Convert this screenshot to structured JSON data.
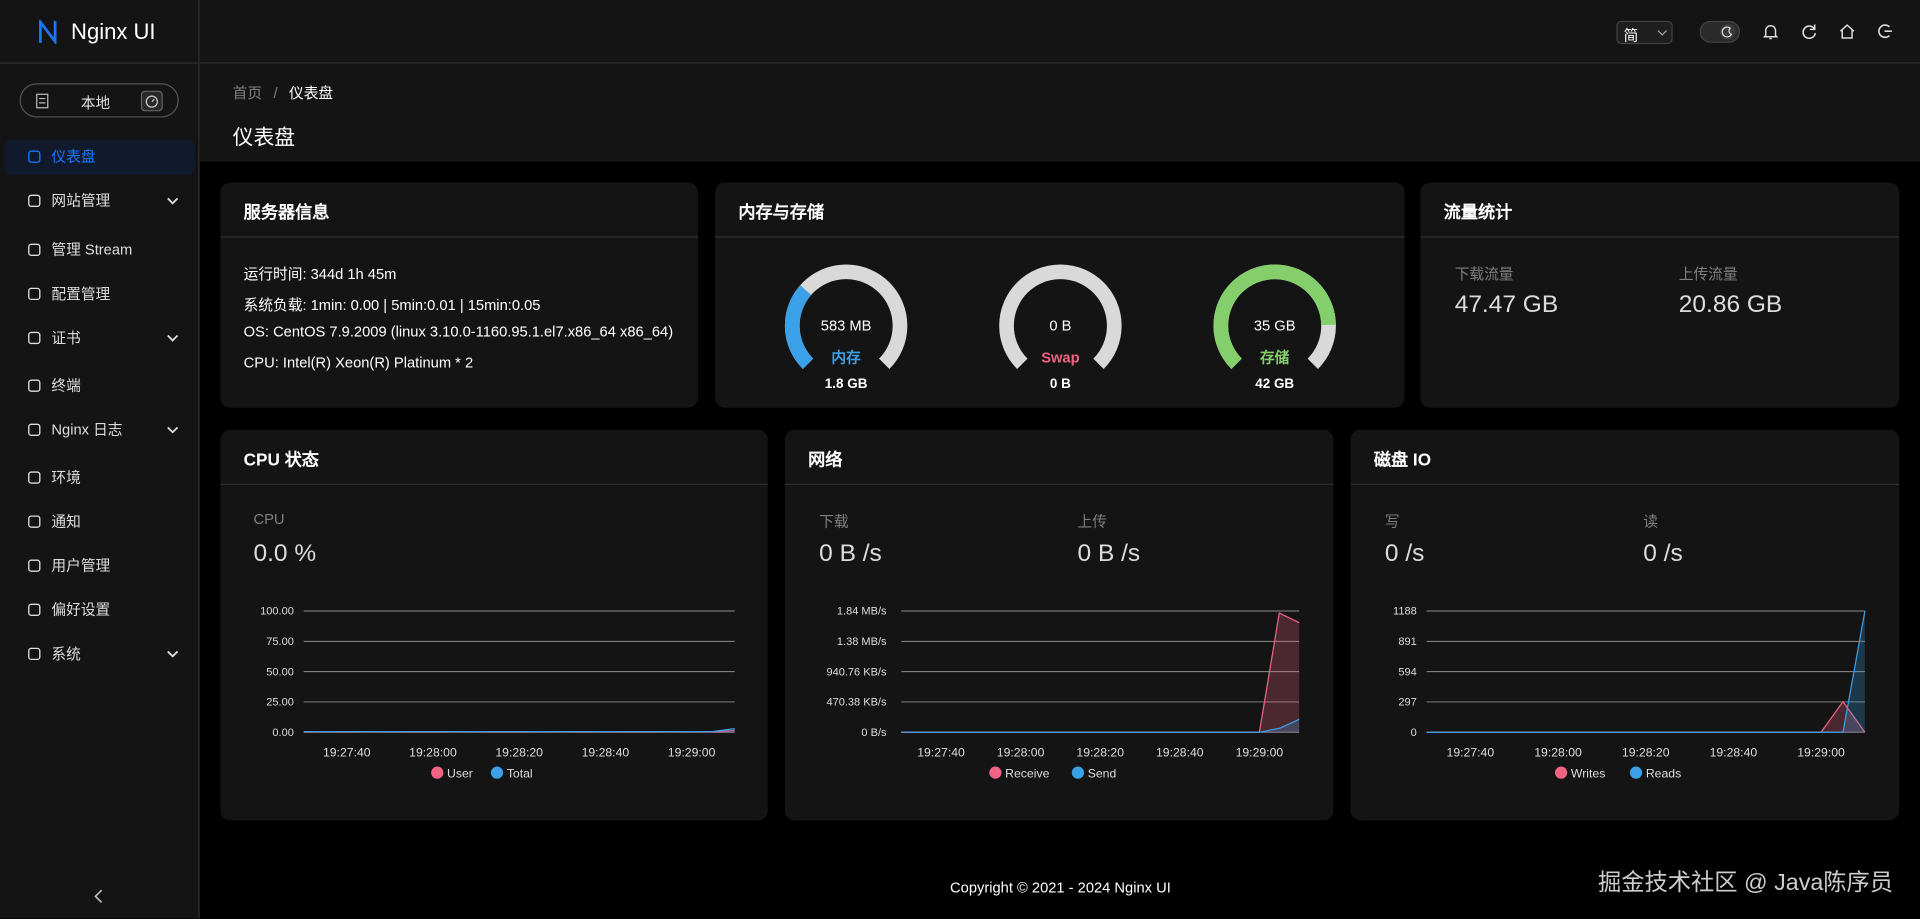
{
  "sidebar": {
    "logo": "Nginx UI",
    "env": "本地",
    "menu": [
      {
        "label": "仪表盘",
        "active": true
      },
      {
        "label": "网站管理",
        "expandable": true
      },
      {
        "label": "管理 Stream"
      },
      {
        "label": "配置管理"
      },
      {
        "label": "证书",
        "expandable": true
      },
      {
        "label": "终端"
      },
      {
        "label": "Nginx 日志",
        "expandable": true
      },
      {
        "label": "环境"
      },
      {
        "label": "通知"
      },
      {
        "label": "用户管理"
      },
      {
        "label": "偏好设置"
      },
      {
        "label": "系统",
        "expandable": true
      }
    ]
  },
  "header": {
    "lang": "简"
  },
  "breadcrumb": [
    "首页",
    "仪表盘"
  ],
  "page_title": "仪表盘",
  "server_info": {
    "title": "服务器信息",
    "lines": [
      "运行时间: 344d 1h 45m",
      "系统负载: 1min: 0.00 | 5min:0.01 | 15min:0.05",
      "OS: CentOS 7.9.2009 (linux 3.10.0-1160.95.1.el7.x86_64 x86_64)",
      "CPU: Intel(R) Xeon(R) Platinum * 2"
    ]
  },
  "memory_storage": {
    "title": "内存与存储",
    "gauges": [
      {
        "value": "583 MB",
        "name": "内存",
        "total": "1.8 GB",
        "percent": 32,
        "color": "#3aa0e8"
      },
      {
        "value": "0 B",
        "name": "Swap",
        "total": "0 B",
        "percent": 0,
        "color": "#f06384"
      },
      {
        "value": "35 GB",
        "name": "存储",
        "total": "42 GB",
        "percent": 83,
        "color": "#84cf6c"
      }
    ]
  },
  "traffic": {
    "title": "流量统计",
    "stats": [
      {
        "label": "下载流量",
        "value": "47.47 GB"
      },
      {
        "label": "上传流量",
        "value": "20.86 GB"
      }
    ]
  },
  "chart_data": [
    {
      "type": "line",
      "title": "CPU 状态",
      "stats": [
        {
          "label": "CPU",
          "value": "0.0 %"
        }
      ],
      "categories": [
        null,
        null,
        "19:27:40",
        null,
        null,
        null,
        "19:28:00",
        null,
        null,
        null,
        "19:28:20",
        null,
        null,
        null,
        "19:28:40",
        null,
        null,
        null,
        "19:29:00",
        null,
        null
      ],
      "series": [
        {
          "name": "User",
          "color": "#f06384",
          "values": [
            0.2,
            0.2,
            0.2,
            0.3,
            0.2,
            0.2,
            0.2,
            0.3,
            0.2,
            0.2,
            0.2,
            0.2,
            0.3,
            0.2,
            0.2,
            0.2,
            0.2,
            0.3,
            0.2,
            0.3,
            1.5
          ]
        },
        {
          "name": "Total",
          "color": "#3aa0e8",
          "values": [
            0.5,
            0.4,
            0.5,
            0.5,
            0.4,
            0.5,
            0.5,
            0.5,
            0.4,
            0.5,
            0.5,
            0.4,
            0.5,
            0.5,
            0.4,
            0.5,
            0.5,
            0.5,
            0.4,
            0.6,
            3
          ]
        }
      ],
      "ylim": [
        0,
        100
      ],
      "yticks": [
        {
          "value": 0,
          "label": "0.00"
        },
        {
          "value": 25,
          "label": "25.00"
        },
        {
          "value": 50,
          "label": "50.00"
        },
        {
          "value": 75,
          "label": "75.00"
        },
        {
          "value": 100,
          "label": "100.00"
        }
      ],
      "grid": true
    },
    {
      "type": "line",
      "title": "网络",
      "stats": [
        {
          "label": "下载",
          "value": "0 B /s"
        },
        {
          "label": "上传",
          "value": "0 B /s"
        }
      ],
      "categories": [
        null,
        null,
        "19:27:40",
        null,
        null,
        null,
        "19:28:00",
        null,
        null,
        null,
        "19:28:20",
        null,
        null,
        null,
        "19:28:40",
        null,
        null,
        null,
        "19:29:00",
        null,
        null
      ],
      "series": [
        {
          "name": "Receive",
          "color": "#f06384",
          "values": [
            0,
            0,
            0,
            0,
            0,
            0,
            0,
            0,
            0,
            0,
            0,
            0,
            0,
            0,
            0,
            0,
            0,
            0,
            0,
            1850,
            1700
          ]
        },
        {
          "name": "Send",
          "color": "#3aa0e8",
          "values": [
            0,
            0,
            0,
            0,
            0,
            0,
            0,
            0,
            0,
            0,
            0,
            0,
            0,
            0,
            0,
            0,
            0,
            0,
            0,
            60,
            200
          ]
        }
      ],
      "ylim": [
        0,
        1881.52
      ],
      "yticks": [
        {
          "value": 0,
          "label": "0 B/s"
        },
        {
          "value": 470.38,
          "label": "470.38 KB/s"
        },
        {
          "value": 940.76,
          "label": "940.76 KB/s"
        },
        {
          "value": 1411.14,
          "label": "1.38 MB/s"
        },
        {
          "value": 1881.52,
          "label": "1.84 MB/s"
        }
      ],
      "grid": true
    },
    {
      "type": "line",
      "title": "磁盘 IO",
      "stats": [
        {
          "label": "写",
          "value": "0 /s"
        },
        {
          "label": "读",
          "value": "0 /s"
        }
      ],
      "categories": [
        null,
        null,
        "19:27:40",
        null,
        null,
        null,
        "19:28:00",
        null,
        null,
        null,
        "19:28:20",
        null,
        null,
        null,
        "19:28:40",
        null,
        null,
        null,
        "19:29:00",
        null,
        null
      ],
      "series": [
        {
          "name": "Writes",
          "color": "#f06384",
          "values": [
            0,
            0,
            0,
            0,
            0,
            0,
            0,
            0,
            0,
            0,
            0,
            0,
            0,
            0,
            0,
            0,
            0,
            0,
            0,
            300,
            0
          ]
        },
        {
          "name": "Reads",
          "color": "#3aa0e8",
          "values": [
            0,
            0,
            0,
            0,
            0,
            0,
            0,
            0,
            0,
            0,
            0,
            0,
            0,
            0,
            0,
            0,
            0,
            0,
            0,
            0,
            1188
          ]
        }
      ],
      "ylim": [
        0,
        1188
      ],
      "yticks": [
        0,
        297,
        594,
        891,
        1188
      ],
      "grid": true
    }
  ],
  "footer": "Copyright © 2021 - 2024 Nginx UI",
  "watermark": "掘金技术社区 @ Java陈序员"
}
